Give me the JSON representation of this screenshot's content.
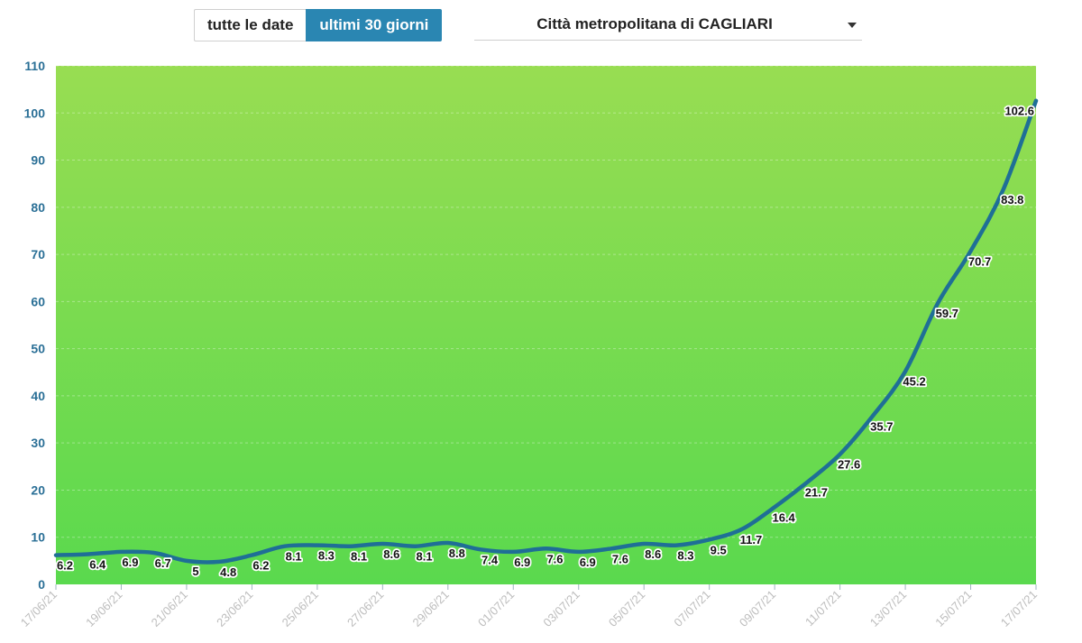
{
  "controls": {
    "range_options": [
      {
        "label": "tutte le date",
        "active": false
      },
      {
        "label": "ultimi 30 giorni",
        "active": true
      }
    ],
    "area_select": {
      "value": "Città metropolitana di CAGLIARI",
      "icon": "caret-down-icon"
    }
  },
  "colors": {
    "line": "#1f6f96",
    "y_tick": "#2a6f96",
    "x_tick": "#bdbdbd",
    "background_top": "#98dd52",
    "background_bottom": "#5ad94e",
    "active_button": "#2a86b2"
  },
  "chart_data": {
    "type": "line",
    "title": "",
    "xlabel": "",
    "ylabel": "",
    "ylim": [
      0,
      110
    ],
    "yticks": [
      0,
      10,
      20,
      30,
      40,
      50,
      60,
      70,
      80,
      90,
      100,
      110
    ],
    "grid": true,
    "x": [
      "17/06/21",
      "18/06/21",
      "19/06/21",
      "20/06/21",
      "21/06/21",
      "22/06/21",
      "23/06/21",
      "24/06/21",
      "25/06/21",
      "26/06/21",
      "27/06/21",
      "28/06/21",
      "29/06/21",
      "30/06/21",
      "01/07/21",
      "02/07/21",
      "03/07/21",
      "04/07/21",
      "05/07/21",
      "06/07/21",
      "07/07/21",
      "08/07/21",
      "09/07/21",
      "10/07/21",
      "11/07/21",
      "12/07/21",
      "13/07/21",
      "14/07/21",
      "15/07/21",
      "16/07/21",
      "17/07/21"
    ],
    "x_tick_labels": [
      "17/06/21",
      "19/06/21",
      "21/06/21",
      "23/06/21",
      "25/06/21",
      "27/06/21",
      "29/06/21",
      "01/07/21",
      "03/07/21",
      "05/07/21",
      "07/07/21",
      "09/07/21",
      "11/07/21",
      "13/07/21",
      "15/07/21",
      "17/07/21"
    ],
    "series": [
      {
        "values": [
          6.2,
          6.4,
          6.9,
          6.7,
          5,
          4.8,
          6.2,
          8.1,
          8.3,
          8.1,
          8.6,
          8.1,
          8.8,
          7.4,
          6.9,
          7.6,
          6.9,
          7.6,
          8.6,
          8.3,
          9.5,
          11.7,
          16.4,
          21.7,
          27.6,
          35.7,
          45.2,
          59.7,
          70.7,
          83.8,
          102.6
        ]
      }
    ]
  }
}
